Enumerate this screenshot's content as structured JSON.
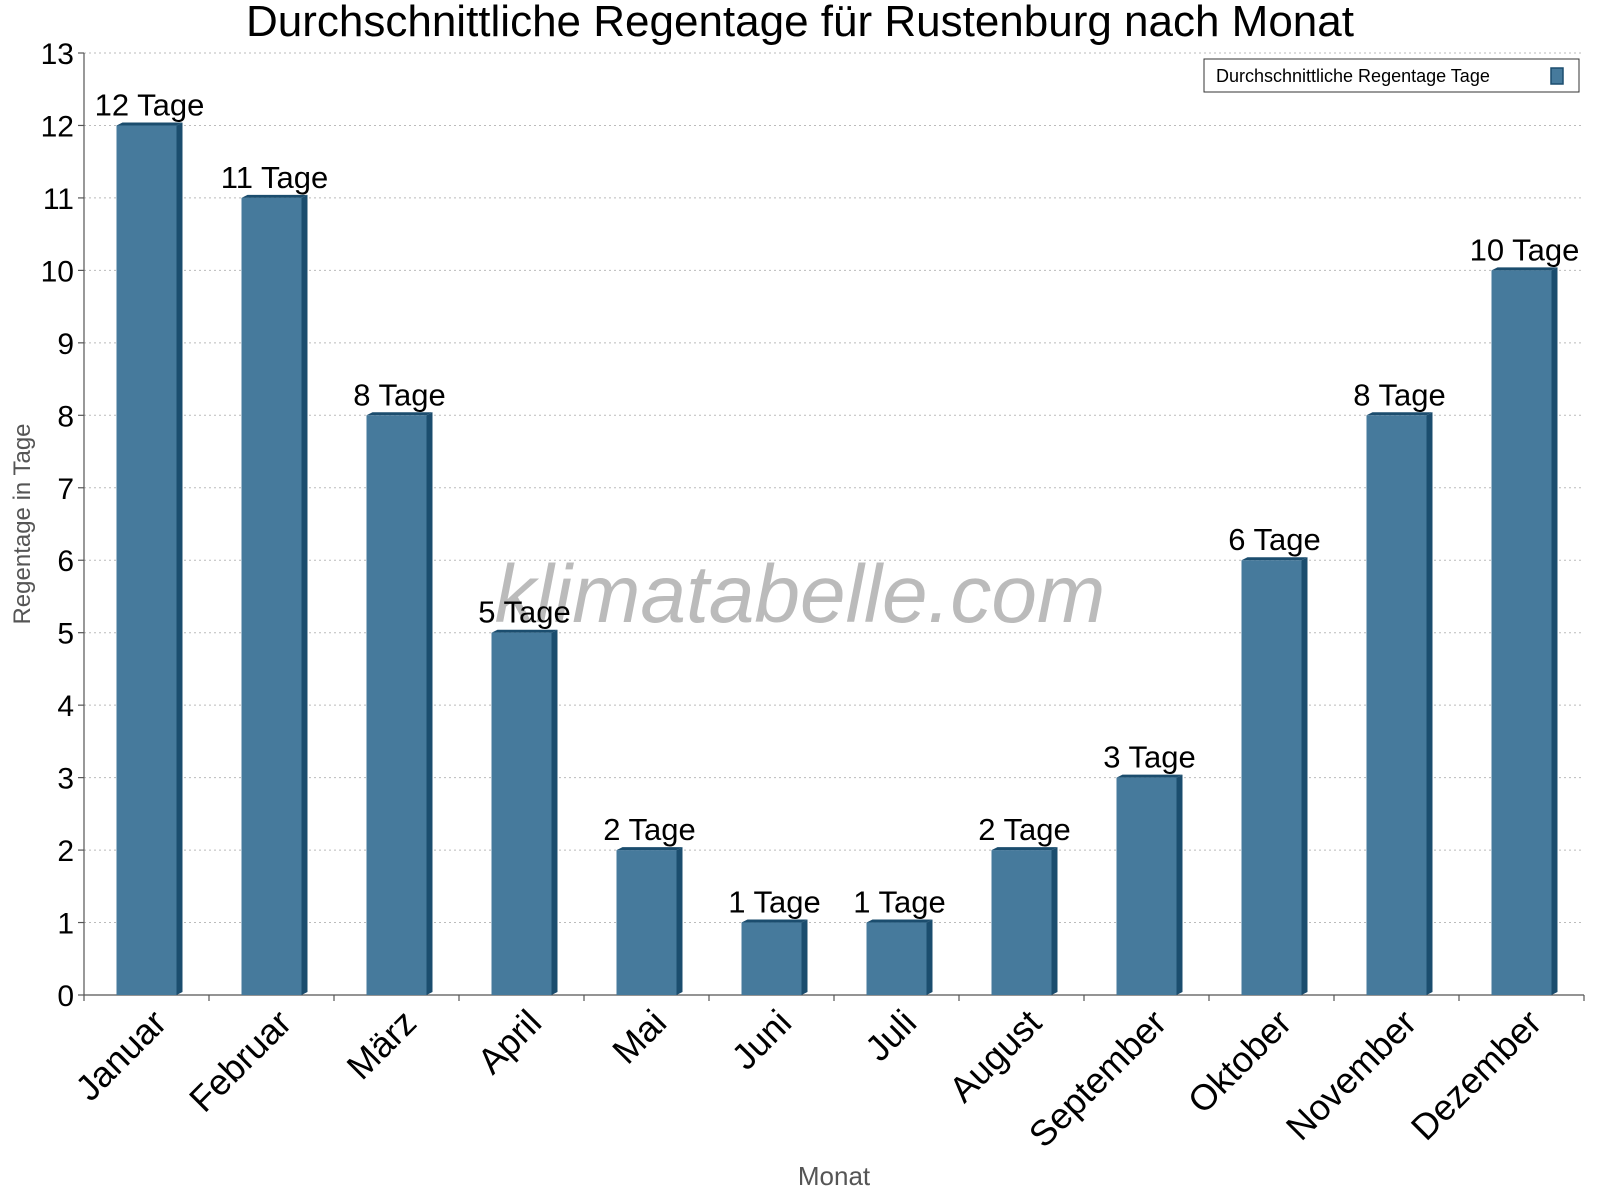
{
  "chart_data": {
    "type": "bar",
    "title": "Durchschnittliche Regentage für Rustenburg nach Monat",
    "x_label": "Monat",
    "y_label": "Regentage in Tage",
    "watermark": "klimatabelle.com",
    "legend": "Durchschnittliche Regentage Tage",
    "legend_position": "upper right",
    "categories": [
      "Januar",
      "Februar",
      "März",
      "April",
      "Mai",
      "Juni",
      "Juli",
      "August",
      "September",
      "Oktober",
      "November",
      "Dezember"
    ],
    "values": [
      12,
      11,
      8,
      5,
      2,
      1,
      1,
      2,
      3,
      6,
      8,
      10
    ],
    "value_labels": [
      "12 Tage",
      "11 Tage",
      "8 Tage",
      "5 Tage",
      "2 Tage",
      "1 Tage",
      "1 Tage",
      "2 Tage",
      "3 Tage",
      "6 Tage",
      "8 Tage",
      "10 Tage"
    ],
    "color": "#467a9c",
    "ylim": [
      0,
      13
    ],
    "yticks": [
      0,
      1,
      2,
      3,
      4,
      5,
      6,
      7,
      8,
      9,
      10,
      11,
      12,
      13
    ],
    "grid": true
  }
}
